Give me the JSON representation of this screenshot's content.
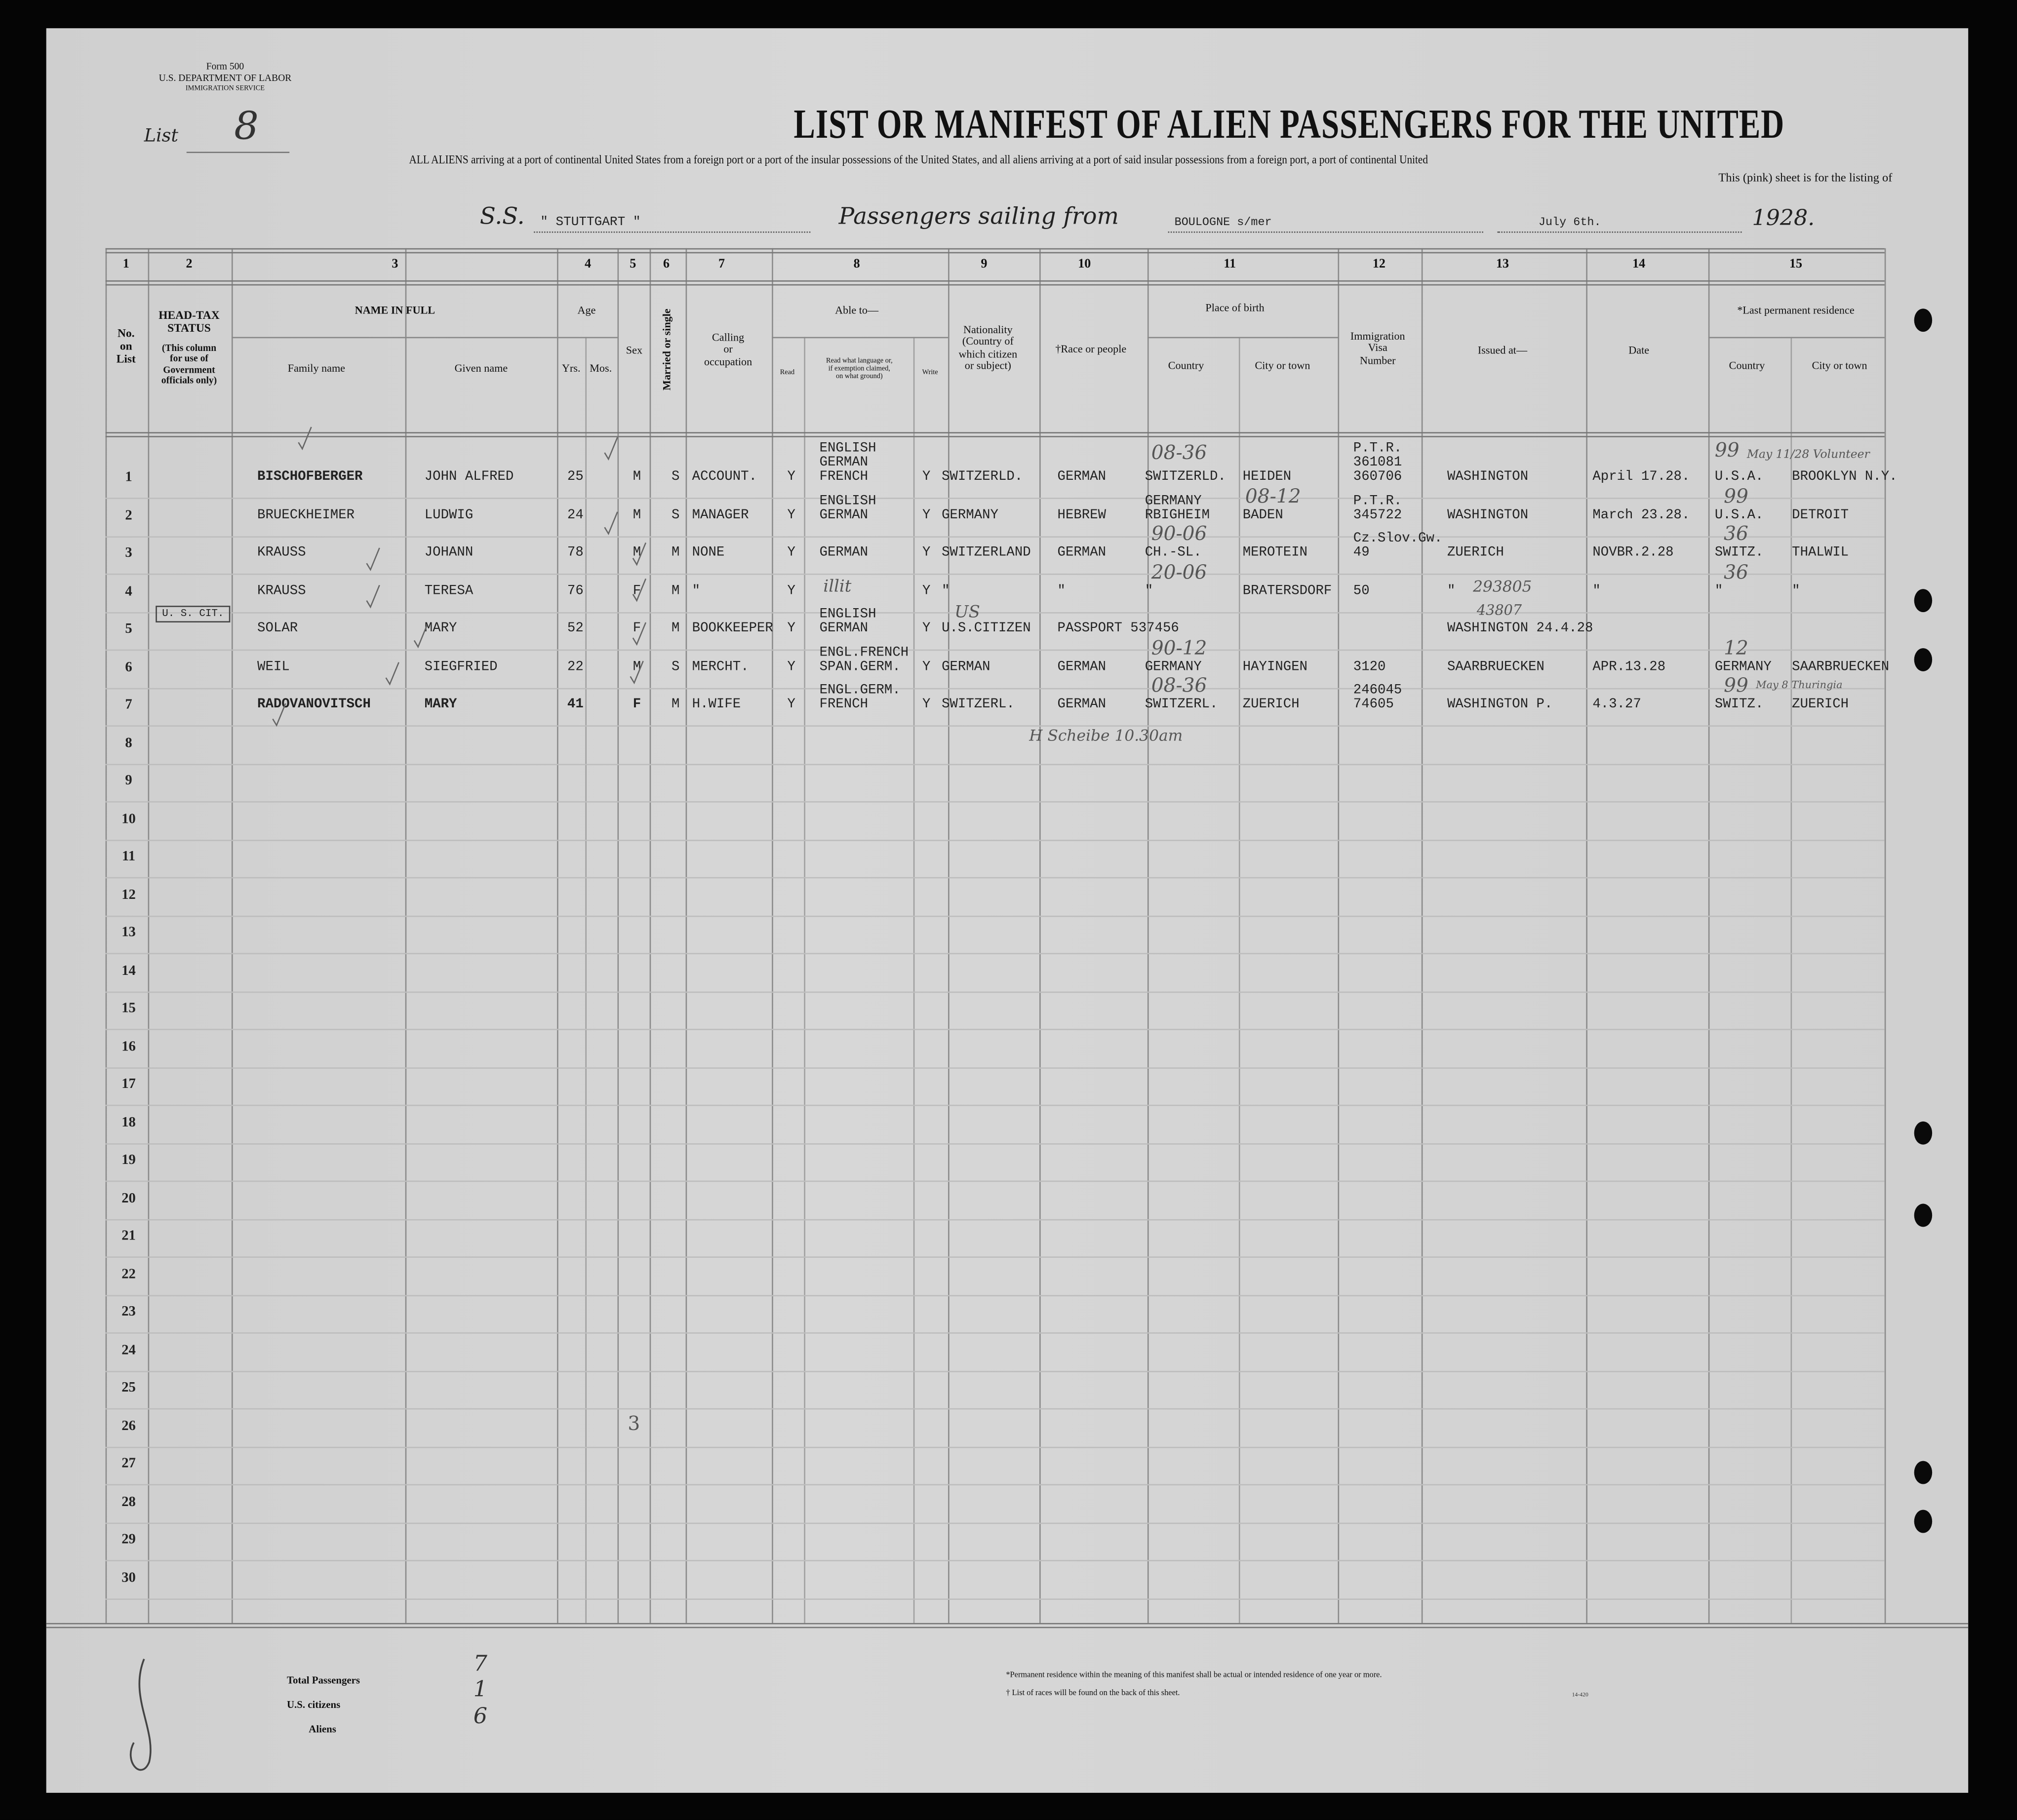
{
  "form": {
    "number": "Form 500",
    "department": "U.S. DEPARTMENT OF LABOR",
    "service": "IMMIGRATION SERVICE",
    "list_label": "List",
    "list_number": "8"
  },
  "title": "LIST OR MANIFEST OF ALIEN PASSENGERS FOR THE UNITED",
  "subtitle": "ALL ALIENS arriving at a port of continental United States from a foreign port or a port of the insular possessions of the United States, and all aliens arriving at a port of said insular possessions from a foreign port, a port of continental United",
  "subtitle2": "This (pink) sheet is for the listing of",
  "voyage": {
    "ss_label": "S.S.",
    "ship": "\" STUTTGART \"",
    "sailing_label": "Passengers sailing from",
    "port": "BOULOGNE s/mer",
    "date": "July 6th.",
    "year": "1928."
  },
  "column_numbers": [
    "1",
    "2",
    "3",
    "4",
    "5",
    "6",
    "7",
    "8",
    "9",
    "10",
    "11",
    "12",
    "13",
    "14",
    "15"
  ],
  "headers": {
    "no": "No.\non\nList",
    "headtax": "HEAD-TAX\nSTATUS",
    "headtax_note": "(This column\nfor use of\nGovernment\nofficials only)",
    "name_in_full": "NAME IN FULL",
    "family": "Family name",
    "given": "Given name",
    "age": "Age",
    "yrs": "Yrs.",
    "mos": "Mos.",
    "sex": "Sex",
    "married": "Married or single",
    "occupation": "Calling\nor\noccupation",
    "able_to": "Able to—",
    "read": "Read",
    "read_what": "Read what language or,\nif exemption claimed,\non what ground)",
    "write": "Write",
    "nationality": "Nationality\n(Country of\nwhich citizen\nor subject)",
    "race": "†Race or people",
    "place_of_birth": "Place of birth",
    "country": "Country",
    "city": "City or town",
    "visa": "Immigration\nVisa\nNumber",
    "issued_at": "Issued at—",
    "date": "Date",
    "last_residence": "*Last permanent residence",
    "res_country": "Country",
    "res_city": "City or town"
  },
  "row_numbers": [
    "1",
    "2",
    "3",
    "4",
    "5",
    "6",
    "7",
    "8",
    "9",
    "10",
    "11",
    "12",
    "13",
    "14",
    "15",
    "16",
    "17",
    "18",
    "19",
    "20",
    "21",
    "22",
    "23",
    "24",
    "25",
    "26",
    "27",
    "28",
    "29",
    "30"
  ],
  "rows": [
    {
      "family": "BISCHOFBERGER",
      "given": "JOHN ALFRED",
      "yrs": "25",
      "sex": "M",
      "married": "S",
      "occupation": "ACCOUNT.",
      "read": "Y",
      "language": "ENGLISH\nGERMAN\nFRENCH",
      "write": "Y",
      "nationality": "SWITZERLD.",
      "race": "GERMAN",
      "birth_country": "SWITZERLD.",
      "birth_city": "HEIDEN",
      "visa": "P.T.R.\n361081\n360706",
      "issued_at": "WASHINGTON",
      "date": "April 17.28.",
      "res_country": "U.S.A.",
      "res_city": "BROOKLYN N.Y."
    },
    {
      "family": "BRUECKHEIMER",
      "given": "LUDWIG",
      "yrs": "24",
      "sex": "M",
      "married": "S",
      "occupation": "MANAGER",
      "read": "Y",
      "language": "ENGLISH\nGERMAN",
      "write": "Y",
      "nationality": "GERMANY",
      "race": "HEBREW",
      "birth_country": "GERMANY\nRBIGHEIM",
      "birth_city": "BADEN",
      "visa": "P.T.R.\n345722",
      "issued_at": "WASHINGTON",
      "date": "March 23.28.",
      "res_country": "U.S.A.",
      "res_city": "DETROIT"
    },
    {
      "family": "KRAUSS",
      "given": "JOHANN",
      "yrs": "78",
      "sex": "M",
      "married": "M",
      "occupation": "NONE",
      "read": "Y",
      "language": "GERMAN",
      "write": "Y",
      "nationality": "SWITZERLAND",
      "race": "GERMAN",
      "birth_country": "CH.-SL.",
      "birth_city": "MEROTEIN",
      "visa": "Cz.Slov.Gw.\n49",
      "issued_at": "ZUERICH",
      "date": "NOVBR.2.28",
      "res_country": "SWITZ.",
      "res_city": "THALWIL"
    },
    {
      "family": "KRAUSS",
      "given": "TERESA",
      "yrs": "76",
      "sex": "F",
      "married": "M",
      "occupation": "\"",
      "read": "Y",
      "language": "",
      "write": "Y",
      "nationality": "\"",
      "race": "\"",
      "birth_country": "\"",
      "birth_city": "BRATERSDORF",
      "visa": "50",
      "issued_at": "\"",
      "date": "\"",
      "res_country": "\"",
      "res_city": "\""
    },
    {
      "family": "SOLAR",
      "given": "MARY",
      "yrs": "52",
      "sex": "F",
      "married": "M",
      "occupation": "BOOKKEEPER",
      "read": "Y",
      "language": "ENGLISH\nGERMAN",
      "write": "Y",
      "nationality": "U.S.CITIZEN",
      "race": "PASSPORT 537456",
      "birth_country": "",
      "birth_city": "",
      "visa": "",
      "issued_at": "WASHINGTON 24.4.28",
      "date": "",
      "res_country": "",
      "res_city": "",
      "headtax": "U. S. CIT."
    },
    {
      "family": "WEIL",
      "given": "SIEGFRIED",
      "yrs": "22",
      "sex": "M",
      "married": "S",
      "occupation": "MERCHT.",
      "read": "Y",
      "language": "ENGL.FRENCH\nSPAN.GERM.",
      "write": "Y",
      "nationality": "GERMAN",
      "race": "GERMAN",
      "birth_country": "GERMANY",
      "birth_city": "HAYINGEN",
      "visa": "3120",
      "issued_at": "SAARBRUECKEN",
      "date": "APR.13.28",
      "res_country": "GERMANY",
      "res_city": "SAARBRUECKEN"
    },
    {
      "family": "RADOVANOVITSCH",
      "given": "MARY",
      "yrs": "41",
      "sex": "F",
      "married": "M",
      "occupation": "H.WIFE",
      "read": "Y",
      "language": "ENGL.GERM.\nFRENCH",
      "write": "Y",
      "nationality": "SWITZERL.",
      "race": "GERMAN",
      "birth_country": "SWITZERL.",
      "birth_city": "ZUERICH",
      "visa": "246045\n74605",
      "issued_at": "WASHINGTON P.",
      "date": "4.3.27",
      "res_country": "SWITZ.",
      "res_city": "ZUERICH"
    }
  ],
  "handwritten": {
    "r1_code": "08-36",
    "r2_code": "08-12",
    "r3_code": "90-06",
    "r4_code": "20-06",
    "r6_code": "90-12",
    "r7_code": "08-36",
    "r1_res": "99",
    "r2_res": "99",
    "r3_res": "36",
    "r4_res": "36",
    "r6_res": "12",
    "r7_res": "99",
    "r4_lang": "illit",
    "r4_num": "293805",
    "r5_num": "43807",
    "r5_nat": "US",
    "r1_note": "May 11/28 Volunteer",
    "r7_note": "May 8 Thuringia",
    "r8_note": "H Scheibe 10.30am",
    "page_mark": "3"
  },
  "totals": {
    "total_label": "Total Passengers",
    "total": "7",
    "us_label": "U.S. citizens",
    "us": "1",
    "aliens_label": "Aliens",
    "aliens": "6"
  },
  "footnotes": {
    "residence": "*Permanent residence within the meaning of this manifest shall be actual or intended residence of one year or more.",
    "races": "† List of races will be found on the back of this sheet.",
    "code": "14-420"
  }
}
